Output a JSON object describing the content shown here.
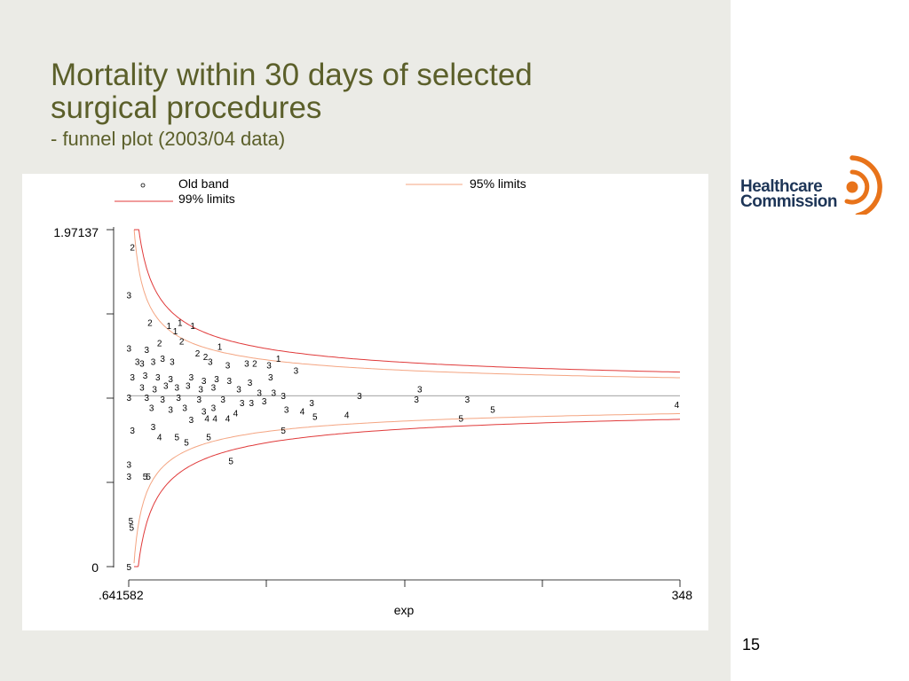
{
  "slide": {
    "title_line1": "Mortality within 30 days of selected",
    "title_line2": "surgical procedures",
    "subtitle": "- funnel plot (2003/04 data)",
    "page_number": "15",
    "logo_line1": "Healthcare",
    "logo_line2": "Commission"
  },
  "colors": {
    "title": "#5b5f2a",
    "limit95": "#f4a582",
    "limit99": "#e03a3a",
    "logo_accent": "#e8731a",
    "logo_text": "#1d3557"
  },
  "chart_data": {
    "type": "scatter",
    "title": "",
    "xlabel": "exp",
    "ylabel": "",
    "x_tick_labels": [
      ".641582",
      "348"
    ],
    "y_tick_labels": [
      "1.97137",
      "0"
    ],
    "xlim": [
      0.641582,
      348
    ],
    "ylim": [
      0,
      1.97137
    ],
    "target": 1,
    "legend": [
      "Old band",
      "95% limits",
      "99% limits"
    ],
    "legend_position": "top",
    "markers": "band number labels",
    "points": [
      {
        "x": 3,
        "y": 1.87,
        "label": "2"
      },
      {
        "x": 0.8,
        "y": 1.59,
        "label": "3"
      },
      {
        "x": 0.8,
        "y": 1.28,
        "label": "3"
      },
      {
        "x": 14,
        "y": 1.43,
        "label": "2"
      },
      {
        "x": 26,
        "y": 1.41,
        "label": "1"
      },
      {
        "x": 30,
        "y": 1.38,
        "label": "1"
      },
      {
        "x": 33,
        "y": 1.43,
        "label": "1"
      },
      {
        "x": 41,
        "y": 1.41,
        "label": "1"
      },
      {
        "x": 12,
        "y": 1.27,
        "label": "3"
      },
      {
        "x": 20,
        "y": 1.31,
        "label": "2"
      },
      {
        "x": 34,
        "y": 1.32,
        "label": "2"
      },
      {
        "x": 58,
        "y": 1.29,
        "label": "1"
      },
      {
        "x": 44,
        "y": 1.25,
        "label": "2"
      },
      {
        "x": 49,
        "y": 1.23,
        "label": "2"
      },
      {
        "x": 95,
        "y": 1.22,
        "label": "1"
      },
      {
        "x": 6,
        "y": 1.2,
        "label": "3"
      },
      {
        "x": 9,
        "y": 1.19,
        "label": "3"
      },
      {
        "x": 16,
        "y": 1.2,
        "label": "3"
      },
      {
        "x": 22,
        "y": 1.22,
        "label": "3"
      },
      {
        "x": 28,
        "y": 1.2,
        "label": "3"
      },
      {
        "x": 52,
        "y": 1.2,
        "label": "3"
      },
      {
        "x": 63,
        "y": 1.18,
        "label": "3"
      },
      {
        "x": 75,
        "y": 1.19,
        "label": "3"
      },
      {
        "x": 80,
        "y": 1.19,
        "label": "2"
      },
      {
        "x": 89,
        "y": 1.18,
        "label": "3"
      },
      {
        "x": 106,
        "y": 1.15,
        "label": "3"
      },
      {
        "x": 3,
        "y": 1.11,
        "label": "3"
      },
      {
        "x": 11,
        "y": 1.12,
        "label": "3"
      },
      {
        "x": 19,
        "y": 1.11,
        "label": "3"
      },
      {
        "x": 27,
        "y": 1.1,
        "label": "3"
      },
      {
        "x": 40,
        "y": 1.11,
        "label": "3"
      },
      {
        "x": 48,
        "y": 1.09,
        "label": "3"
      },
      {
        "x": 56,
        "y": 1.1,
        "label": "3"
      },
      {
        "x": 64,
        "y": 1.09,
        "label": "3"
      },
      {
        "x": 77,
        "y": 1.08,
        "label": "3"
      },
      {
        "x": 90,
        "y": 1.11,
        "label": "3"
      },
      {
        "x": 9,
        "y": 1.05,
        "label": "3"
      },
      {
        "x": 17,
        "y": 1.04,
        "label": "3"
      },
      {
        "x": 24,
        "y": 1.06,
        "label": "3"
      },
      {
        "x": 31,
        "y": 1.05,
        "label": "3"
      },
      {
        "x": 38,
        "y": 1.06,
        "label": "3"
      },
      {
        "x": 46,
        "y": 1.04,
        "label": "3"
      },
      {
        "x": 54,
        "y": 1.05,
        "label": "3"
      },
      {
        "x": 70,
        "y": 1.04,
        "label": "3"
      },
      {
        "x": 83,
        "y": 1.02,
        "label": "3"
      },
      {
        "x": 92,
        "y": 1.02,
        "label": "3"
      },
      {
        "x": 98,
        "y": 1.0,
        "label": "3"
      },
      {
        "x": 146,
        "y": 1.0,
        "label": "3"
      },
      {
        "x": 184,
        "y": 1.04,
        "label": "3"
      },
      {
        "x": 0.8,
        "y": 0.99,
        "label": "3"
      },
      {
        "x": 12,
        "y": 0.99,
        "label": "3"
      },
      {
        "x": 22,
        "y": 0.98,
        "label": "3"
      },
      {
        "x": 32,
        "y": 0.99,
        "label": "3"
      },
      {
        "x": 45,
        "y": 0.98,
        "label": "3"
      },
      {
        "x": 60,
        "y": 0.98,
        "label": "3"
      },
      {
        "x": 72,
        "y": 0.96,
        "label": "3"
      },
      {
        "x": 78,
        "y": 0.96,
        "label": "3"
      },
      {
        "x": 86,
        "y": 0.97,
        "label": "3"
      },
      {
        "x": 182,
        "y": 0.98,
        "label": "3"
      },
      {
        "x": 214,
        "y": 0.98,
        "label": "3"
      },
      {
        "x": 15,
        "y": 0.93,
        "label": "3"
      },
      {
        "x": 27,
        "y": 0.92,
        "label": "3"
      },
      {
        "x": 36,
        "y": 0.93,
        "label": "3"
      },
      {
        "x": 48,
        "y": 0.91,
        "label": "3"
      },
      {
        "x": 54,
        "y": 0.93,
        "label": "3"
      },
      {
        "x": 100,
        "y": 0.92,
        "label": "3"
      },
      {
        "x": 116,
        "y": 0.96,
        "label": "3"
      },
      {
        "x": 40,
        "y": 0.86,
        "label": "3"
      },
      {
        "x": 50,
        "y": 0.87,
        "label": "4"
      },
      {
        "x": 55,
        "y": 0.87,
        "label": "4"
      },
      {
        "x": 63,
        "y": 0.87,
        "label": "4"
      },
      {
        "x": 68,
        "y": 0.9,
        "label": "4"
      },
      {
        "x": 110,
        "y": 0.91,
        "label": "4"
      },
      {
        "x": 118,
        "y": 0.88,
        "label": "5"
      },
      {
        "x": 138,
        "y": 0.89,
        "label": "4"
      },
      {
        "x": 210,
        "y": 0.87,
        "label": "5"
      },
      {
        "x": 230,
        "y": 0.92,
        "label": "5"
      },
      {
        "x": 346,
        "y": 0.95,
        "label": "4"
      },
      {
        "x": 3,
        "y": 0.8,
        "label": "3"
      },
      {
        "x": 16,
        "y": 0.82,
        "label": "3"
      },
      {
        "x": 20,
        "y": 0.76,
        "label": "4"
      },
      {
        "x": 31,
        "y": 0.76,
        "label": "5"
      },
      {
        "x": 37,
        "y": 0.73,
        "label": "5"
      },
      {
        "x": 51,
        "y": 0.76,
        "label": "5"
      },
      {
        "x": 98,
        "y": 0.8,
        "label": "5"
      },
      {
        "x": 0.8,
        "y": 0.6,
        "label": "3"
      },
      {
        "x": 0.8,
        "y": 0.53,
        "label": "3"
      },
      {
        "x": 11,
        "y": 0.53,
        "label": "5"
      },
      {
        "x": 13,
        "y": 0.53,
        "label": "5"
      },
      {
        "x": 65,
        "y": 0.62,
        "label": "5"
      },
      {
        "x": 2,
        "y": 0.27,
        "label": "5"
      },
      {
        "x": 2.5,
        "y": 0.23,
        "label": "5"
      },
      {
        "x": 0.8,
        "y": 0.0,
        "label": "5"
      }
    ]
  }
}
